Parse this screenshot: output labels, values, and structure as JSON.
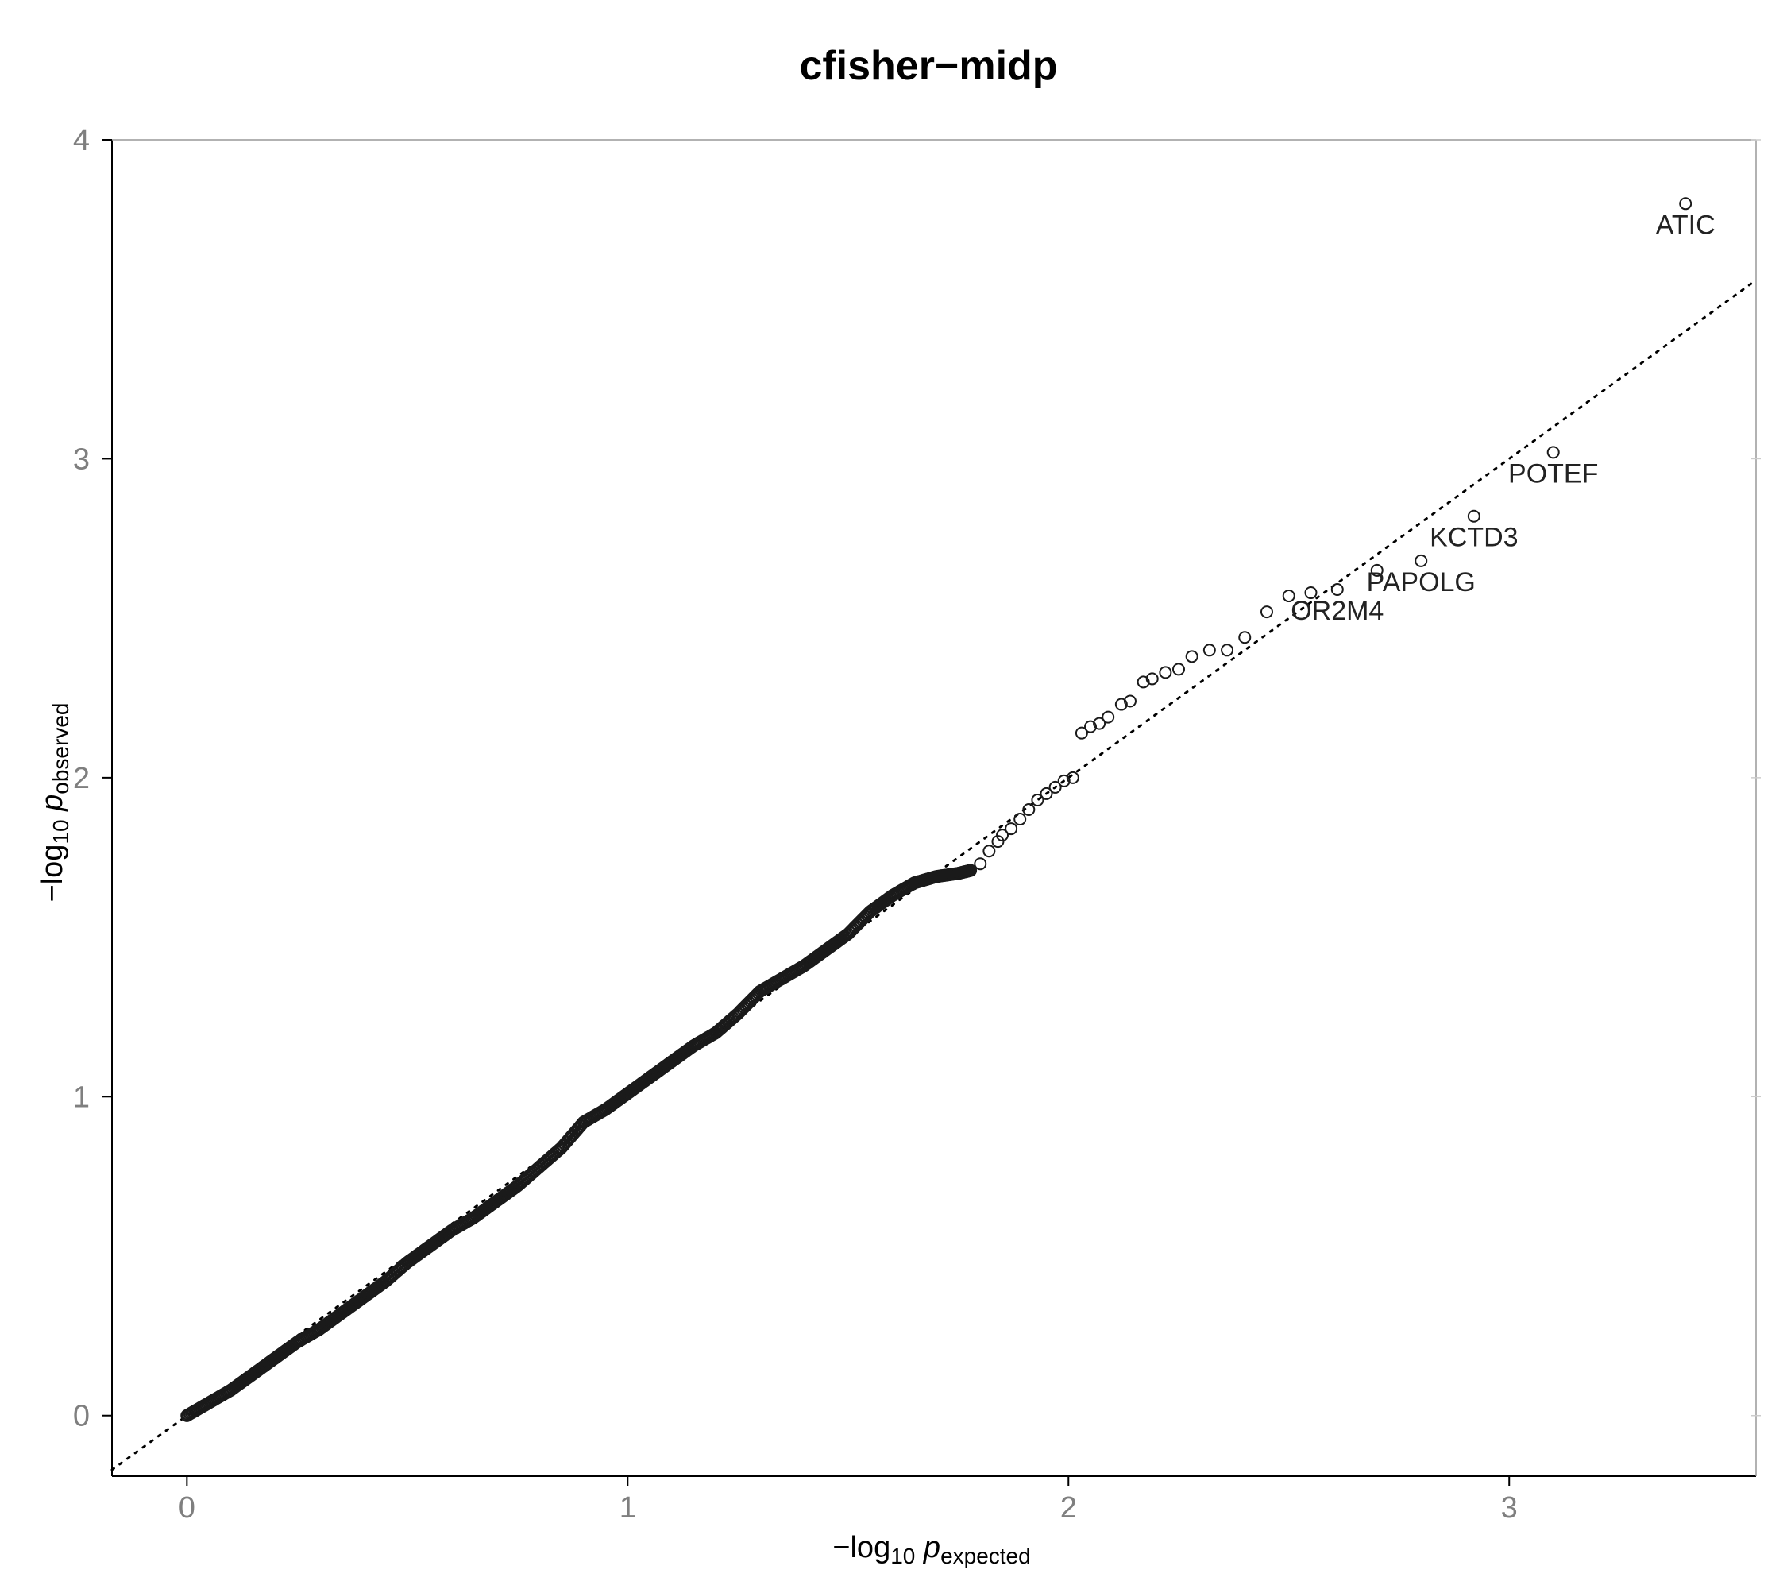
{
  "chart_data": {
    "type": "scatter",
    "title": "cfisher−midp",
    "xlabel": {
      "prefix": "−log",
      "base": "10",
      "var": "p",
      "subscript": "expected"
    },
    "ylabel": {
      "prefix": "−log",
      "base": "10",
      "var": "p",
      "subscript": "observed"
    },
    "xlim": [
      -0.17,
      3.56
    ],
    "ylim": [
      -0.19,
      4.0
    ],
    "x_ticks": [
      0,
      1,
      2,
      3
    ],
    "y_ticks": [
      0,
      1,
      2,
      3,
      4
    ],
    "x_tick_labels": [
      "0",
      "1",
      "2",
      "3"
    ],
    "y_tick_labels": [
      "0",
      "1",
      "2",
      "3",
      "4"
    ],
    "grid": false,
    "reference_line": {
      "slope": 1,
      "intercept": 0,
      "style": "dotted"
    },
    "marker": "open-circle",
    "dense_region": {
      "x_start": 0.0,
      "x_end": 1.78,
      "points": [
        [
          0.0,
          0.0
        ],
        [
          0.05,
          0.04
        ],
        [
          0.1,
          0.08
        ],
        [
          0.15,
          0.13
        ],
        [
          0.2,
          0.18
        ],
        [
          0.25,
          0.23
        ],
        [
          0.3,
          0.27
        ],
        [
          0.35,
          0.32
        ],
        [
          0.4,
          0.37
        ],
        [
          0.45,
          0.42
        ],
        [
          0.5,
          0.48
        ],
        [
          0.55,
          0.53
        ],
        [
          0.6,
          0.58
        ],
        [
          0.65,
          0.62
        ],
        [
          0.7,
          0.67
        ],
        [
          0.75,
          0.72
        ],
        [
          0.8,
          0.78
        ],
        [
          0.85,
          0.84
        ],
        [
          0.9,
          0.92
        ],
        [
          0.95,
          0.96
        ],
        [
          1.0,
          1.01
        ],
        [
          1.05,
          1.06
        ],
        [
          1.1,
          1.11
        ],
        [
          1.15,
          1.16
        ],
        [
          1.2,
          1.2
        ],
        [
          1.25,
          1.26
        ],
        [
          1.3,
          1.33
        ],
        [
          1.35,
          1.37
        ],
        [
          1.4,
          1.41
        ],
        [
          1.45,
          1.46
        ],
        [
          1.5,
          1.51
        ],
        [
          1.55,
          1.58
        ],
        [
          1.6,
          1.63
        ],
        [
          1.65,
          1.67
        ],
        [
          1.7,
          1.69
        ],
        [
          1.75,
          1.7
        ],
        [
          1.78,
          1.71
        ]
      ]
    },
    "sparse_points": [
      [
        1.8,
        1.73
      ],
      [
        1.82,
        1.77
      ],
      [
        1.84,
        1.8
      ],
      [
        1.85,
        1.82
      ],
      [
        1.87,
        1.84
      ],
      [
        1.89,
        1.87
      ],
      [
        1.91,
        1.9
      ],
      [
        1.93,
        1.93
      ],
      [
        1.95,
        1.95
      ],
      [
        1.97,
        1.97
      ],
      [
        1.99,
        1.99
      ],
      [
        2.01,
        2.0
      ],
      [
        2.03,
        2.14
      ],
      [
        2.05,
        2.16
      ],
      [
        2.07,
        2.17
      ],
      [
        2.09,
        2.19
      ],
      [
        2.12,
        2.23
      ],
      [
        2.14,
        2.24
      ],
      [
        2.17,
        2.3
      ],
      [
        2.19,
        2.31
      ],
      [
        2.22,
        2.33
      ],
      [
        2.25,
        2.34
      ],
      [
        2.28,
        2.38
      ],
      [
        2.32,
        2.4
      ],
      [
        2.36,
        2.4
      ],
      [
        2.4,
        2.44
      ],
      [
        2.45,
        2.52
      ],
      [
        2.5,
        2.57
      ],
      [
        2.55,
        2.58
      ],
      [
        2.61,
        2.59
      ],
      [
        2.7,
        2.65
      ],
      [
        2.8,
        2.68
      ],
      [
        2.92,
        2.82
      ],
      [
        3.1,
        3.02
      ],
      [
        3.4,
        3.8
      ]
    ],
    "labeled_points": [
      {
        "label": "ATIC",
        "x": 3.4,
        "y": 3.8
      },
      {
        "label": "POTEF",
        "x": 3.1,
        "y": 3.02
      },
      {
        "label": "KCTD3",
        "x": 2.92,
        "y": 2.82
      },
      {
        "label": "PAPOLG",
        "x": 2.8,
        "y": 2.68
      },
      {
        "label": "OR2M4",
        "x": 2.61,
        "y": 2.59
      }
    ]
  }
}
